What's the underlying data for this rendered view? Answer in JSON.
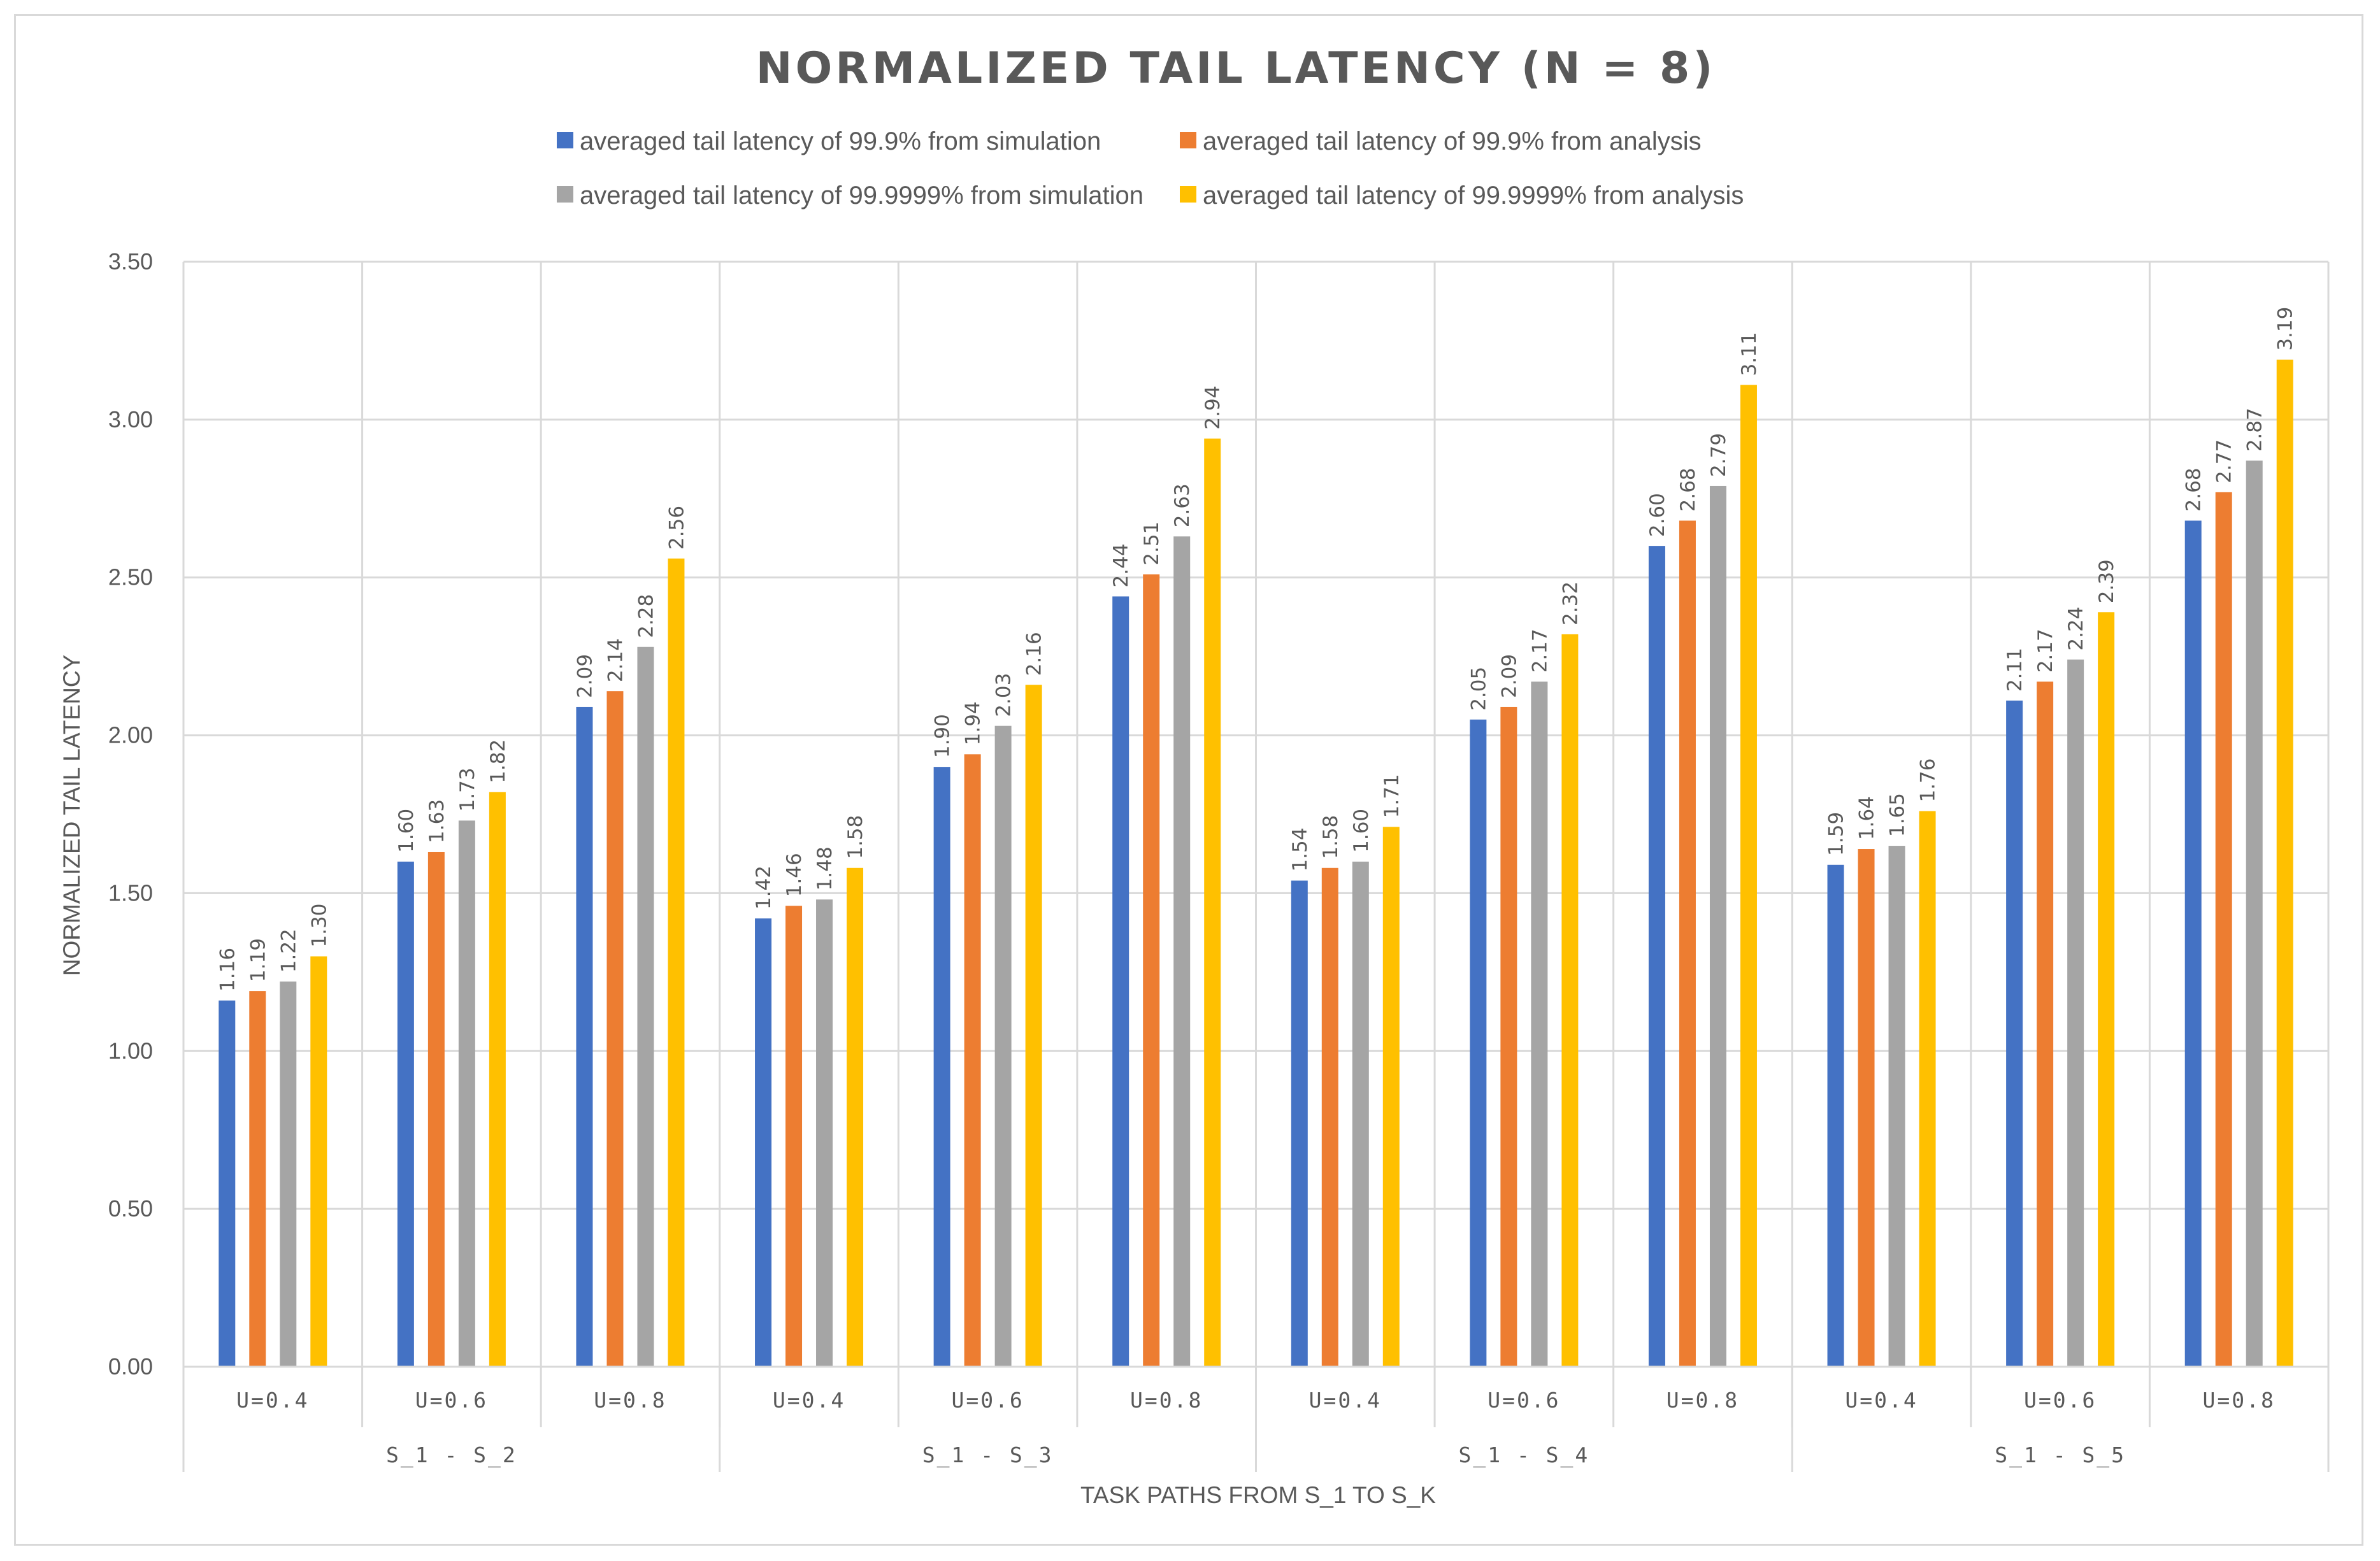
{
  "chart_data": {
    "type": "bar",
    "title": "NORMALIZED TAIL LATENCY (N = 8)",
    "xlabel": "TASK PATHS FROM S_1 TO S_K",
    "ylabel": "NORMALIZED TAIL LATENCY",
    "ylim": [
      0,
      3.5
    ],
    "ytick_step": 0.5,
    "grid": true,
    "legend_position": "top",
    "groups": [
      {
        "label": "S_1 - S_2",
        "categories": [
          "U=0.4",
          "U=0.6",
          "U=0.8"
        ]
      },
      {
        "label": "S_1 - S_3",
        "categories": [
          "U=0.4",
          "U=0.6",
          "U=0.8"
        ]
      },
      {
        "label": "S_1 - S_4",
        "categories": [
          "U=0.4",
          "U=0.6",
          "U=0.8"
        ]
      },
      {
        "label": "S_1 - S_5",
        "categories": [
          "U=0.4",
          "U=0.6",
          "U=0.8"
        ]
      }
    ],
    "series": [
      {
        "name": "averaged tail latency of 99.9% from simulation",
        "color": "#4472c4",
        "values": [
          1.16,
          1.6,
          2.09,
          1.42,
          1.9,
          2.44,
          1.54,
          2.05,
          2.6,
          1.59,
          2.11,
          2.68
        ]
      },
      {
        "name": "averaged tail latency of 99.9% from analysis",
        "color": "#ed7d31",
        "values": [
          1.19,
          1.63,
          2.14,
          1.46,
          1.94,
          2.51,
          1.58,
          2.09,
          2.68,
          1.64,
          2.17,
          2.77
        ]
      },
      {
        "name": "averaged tail latency of 99.9999% from simulation",
        "color": "#a5a5a5",
        "values": [
          1.22,
          1.73,
          2.28,
          1.48,
          2.03,
          2.63,
          1.6,
          2.17,
          2.79,
          1.65,
          2.24,
          2.87
        ]
      },
      {
        "name": "averaged tail latency of 99.9999% from analysis",
        "color": "#ffc000",
        "values": [
          1.3,
          1.82,
          2.56,
          1.58,
          2.16,
          2.94,
          1.71,
          2.32,
          3.11,
          1.76,
          2.39,
          3.19
        ]
      }
    ]
  }
}
